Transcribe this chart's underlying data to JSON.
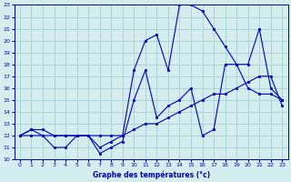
{
  "title": "Graphe des températures (°c)",
  "bg_color": "#d4eef0",
  "grid_color": "#a0c8cc",
  "line_color": "#0000bb",
  "xlim": [
    -0.5,
    23.5
  ],
  "ylim": [
    10,
    23
  ],
  "xticks": [
    0,
    1,
    2,
    3,
    4,
    5,
    6,
    7,
    8,
    9,
    10,
    11,
    12,
    13,
    14,
    15,
    16,
    17,
    18,
    19,
    20,
    21,
    22,
    23
  ],
  "yticks": [
    10,
    11,
    12,
    13,
    14,
    15,
    16,
    17,
    18,
    19,
    20,
    21,
    22,
    23
  ],
  "series": [
    {
      "x": [
        0,
        1,
        2,
        3,
        4,
        5,
        6,
        7,
        8,
        9,
        10,
        11,
        12,
        13,
        14,
        15,
        16,
        17,
        18,
        19,
        20,
        21,
        22,
        23
      ],
      "y": [
        12,
        12.5,
        12.5,
        12,
        12,
        12,
        12,
        11,
        11.5,
        12,
        17.5,
        20,
        20.5,
        17.5,
        23,
        23,
        22.5,
        21,
        19.5,
        18,
        18,
        21,
        16,
        15
      ]
    },
    {
      "x": [
        0,
        1,
        2,
        3,
        4,
        5,
        6,
        7,
        8,
        9,
        10,
        11,
        12,
        13,
        14,
        15,
        16,
        17,
        18,
        19,
        20,
        21,
        22,
        23
      ],
      "y": [
        12,
        12,
        12,
        12,
        12,
        12,
        12,
        12,
        12,
        12,
        12.5,
        13,
        13,
        13.5,
        14,
        14.5,
        15,
        15.5,
        15.5,
        16,
        16.5,
        17,
        17,
        14.5
      ]
    },
    {
      "x": [
        0,
        1,
        2,
        3,
        4,
        5,
        6,
        7,
        8,
        9,
        10,
        11,
        12,
        13,
        14,
        15,
        16,
        17,
        18,
        19,
        20,
        21,
        22,
        23
      ],
      "y": [
        12,
        12.5,
        12,
        11,
        11,
        12,
        12,
        10.5,
        11,
        11.5,
        15,
        17.5,
        13.5,
        14.5,
        15,
        16,
        12,
        12.5,
        18,
        18,
        16,
        15.5,
        15.5,
        15
      ]
    }
  ]
}
